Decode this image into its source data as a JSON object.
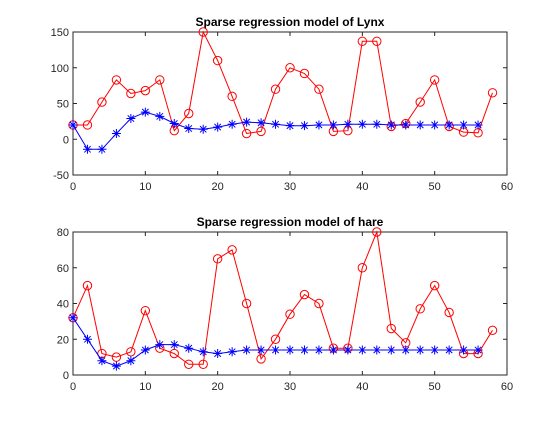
{
  "colors": {
    "prediction": "#ff0000",
    "model": "#0000ff",
    "axis": "#262626",
    "background": "#ffffff"
  },
  "chart_data": [
    {
      "type": "line",
      "title": "Sparse regression model of Lynx",
      "xlabel": "",
      "ylabel": "",
      "xlim": [
        0,
        60
      ],
      "ylim": [
        -50,
        150
      ],
      "xticks": [
        "0",
        "10",
        "20",
        "30",
        "40",
        "50",
        "60"
      ],
      "yticks": [
        "-50",
        "0",
        "50",
        "100",
        "150"
      ],
      "grid": false,
      "legend": "none",
      "series": [
        {
          "marker": "circle",
          "color": "#ff0000",
          "x": [
            0,
            2,
            4,
            6,
            8,
            10,
            12,
            14,
            16,
            18,
            20,
            22,
            24,
            26,
            28,
            30,
            32,
            34,
            36,
            38,
            40,
            42,
            44,
            46,
            48,
            50,
            52,
            54,
            56,
            58
          ],
          "values": [
            20,
            20,
            52,
            83,
            64,
            68,
            83,
            12,
            36,
            150,
            110,
            60,
            8,
            11,
            70,
            100,
            92,
            70,
            11,
            12,
            137,
            137,
            18,
            22,
            52,
            83,
            18,
            10,
            9,
            65
          ]
        },
        {
          "marker": "star",
          "color": "#0000ff",
          "x": [
            0,
            2,
            4,
            6,
            8,
            10,
            12,
            14,
            16,
            18,
            20,
            22,
            24,
            26,
            28,
            30,
            32,
            34,
            36,
            38,
            40,
            42,
            44,
            46,
            48,
            50,
            52,
            54,
            56
          ],
          "values": [
            20,
            -14,
            -14,
            8,
            29,
            38,
            32,
            22,
            15,
            14,
            17,
            21,
            24,
            23,
            21,
            19,
            19,
            20,
            20,
            21,
            21,
            21,
            20,
            20,
            20,
            20,
            20,
            20,
            20
          ]
        }
      ]
    },
    {
      "type": "line",
      "title": "Sparse regression model of hare",
      "xlabel": "",
      "ylabel": "",
      "xlim": [
        0,
        60
      ],
      "ylim": [
        0,
        80
      ],
      "xticks": [
        "0",
        "10",
        "20",
        "30",
        "40",
        "50",
        "60"
      ],
      "yticks": [
        "0",
        "20",
        "40",
        "60",
        "80"
      ],
      "grid": false,
      "legend": "none",
      "series": [
        {
          "marker": "circle",
          "color": "#ff0000",
          "x": [
            0,
            2,
            4,
            6,
            8,
            10,
            12,
            14,
            16,
            18,
            20,
            22,
            24,
            26,
            28,
            30,
            32,
            34,
            36,
            38,
            40,
            42,
            44,
            46,
            48,
            50,
            52,
            54,
            56,
            58
          ],
          "values": [
            32,
            50,
            12,
            10,
            13,
            36,
            15,
            12,
            6,
            6,
            65,
            70,
            40,
            9,
            20,
            34,
            45,
            40,
            15,
            15,
            60,
            80,
            26,
            18,
            37,
            50,
            35,
            12,
            12,
            25
          ]
        },
        {
          "marker": "star",
          "color": "#0000ff",
          "x": [
            0,
            2,
            4,
            6,
            8,
            10,
            12,
            14,
            16,
            18,
            20,
            22,
            24,
            26,
            28,
            30,
            32,
            34,
            36,
            38,
            40,
            42,
            44,
            46,
            48,
            50,
            52,
            54,
            56
          ],
          "values": [
            32,
            20,
            8,
            5,
            8,
            14,
            17,
            17,
            15,
            13,
            12,
            13,
            14,
            14,
            14,
            14,
            14,
            14,
            14,
            14,
            14,
            14,
            14,
            14,
            14,
            14,
            14,
            14,
            14
          ]
        }
      ]
    }
  ]
}
